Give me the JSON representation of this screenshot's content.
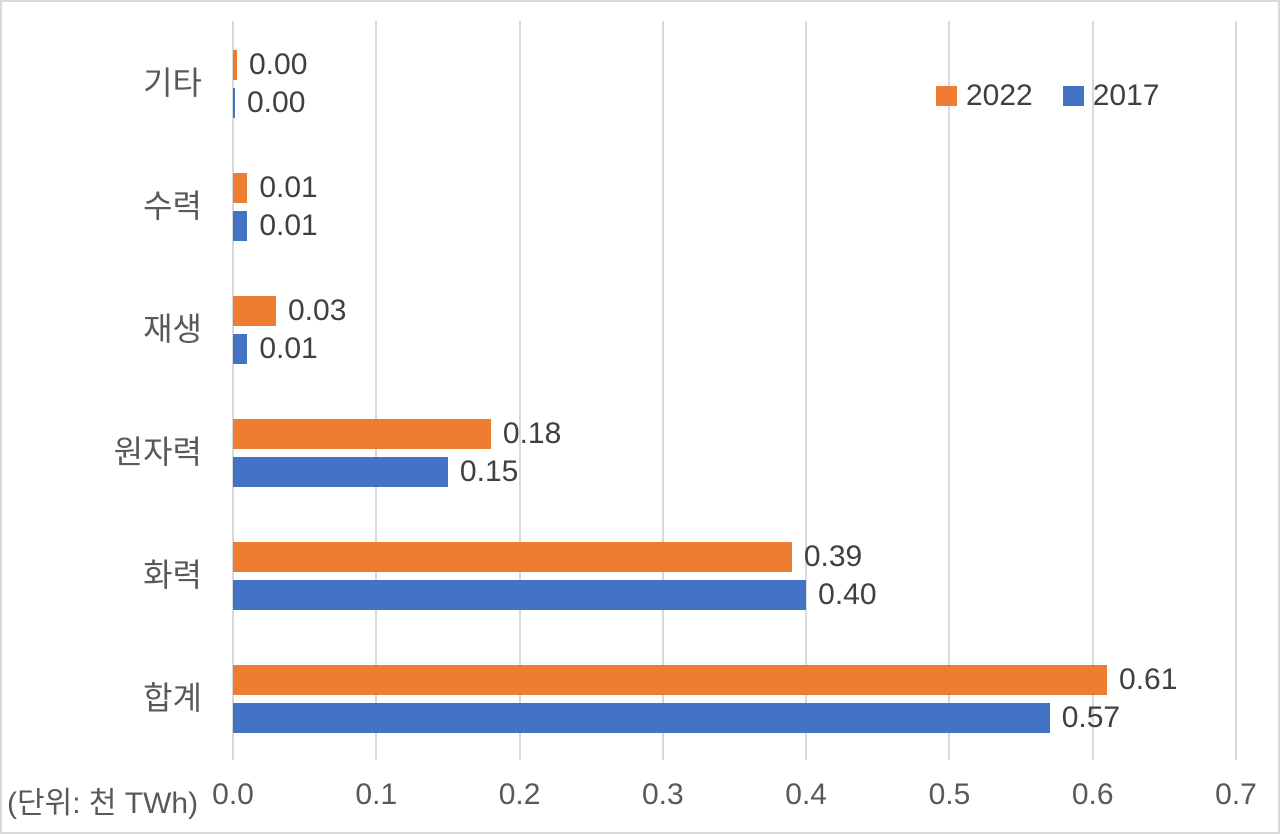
{
  "chart_data": {
    "type": "bar",
    "orientation": "horizontal",
    "title": "",
    "categories": [
      "기타",
      "수력",
      "재생",
      "원자력",
      "화력",
      "합계"
    ],
    "series": [
      {
        "name": "2022",
        "color": "#ED7D31",
        "values": [
          0.0,
          0.01,
          0.03,
          0.18,
          0.39,
          0.61
        ]
      },
      {
        "name": "2017",
        "color": "#4472C4",
        "values": [
          0.0,
          0.01,
          0.01,
          0.15,
          0.4,
          0.57
        ]
      }
    ],
    "value_labels": {
      "2022": [
        "0.00",
        "0.01",
        "0.03",
        "0.18",
        "0.39",
        "0.61"
      ],
      "2017": [
        "0.00",
        "0.01",
        "0.01",
        "0.15",
        "0.40",
        "0.57"
      ]
    },
    "xlim": [
      0,
      0.7
    ],
    "x_tick_labels": [
      "0.0",
      "0.1",
      "0.2",
      "0.3",
      "0.4",
      "0.5",
      "0.6",
      "0.7"
    ],
    "unit_note": "(단위: 천 TWh)",
    "legend": {
      "position": "top-right",
      "entries": [
        "2022",
        "2017"
      ]
    },
    "grid": true,
    "colors": {
      "gridline": "#d9d9d9",
      "axis_text": "#595959",
      "value_text": "#404040",
      "background": "#ffffff"
    }
  }
}
